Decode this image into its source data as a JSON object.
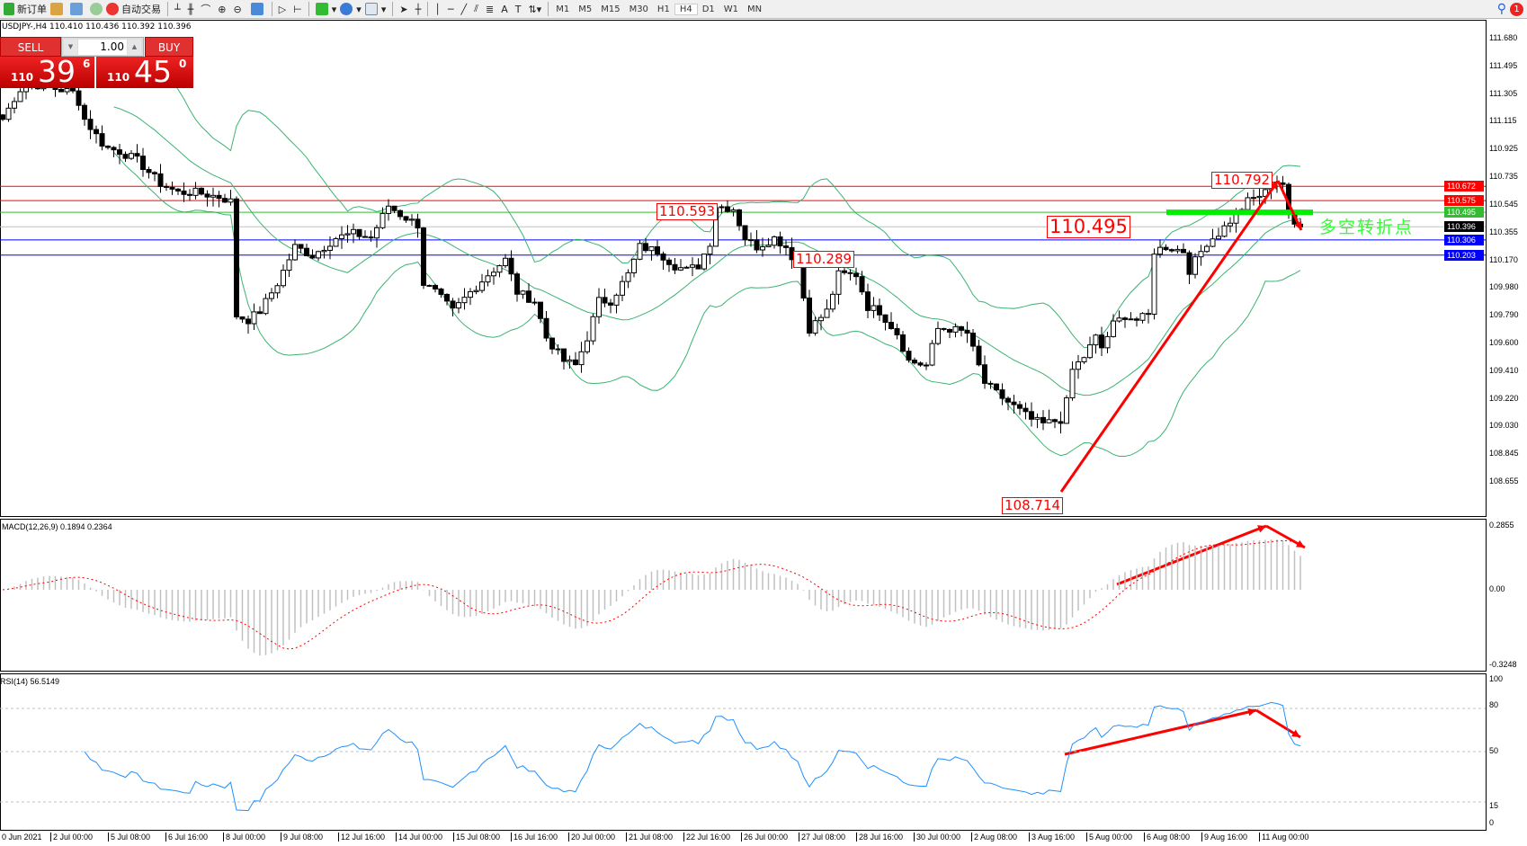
{
  "toolbar": {
    "new_order": "新订单",
    "auto_trading": "自动交易",
    "timeframes": [
      "M1",
      "M5",
      "M15",
      "M30",
      "H1",
      "H4",
      "D1",
      "W1",
      "MN"
    ],
    "active_timeframe": "H4",
    "notification_count": "1"
  },
  "symbol_info": "USDJPY-,H4  110.410 110.436 110.392 110.396",
  "one_click": {
    "sell_label": "SELL",
    "buy_label": "BUY",
    "lot": "1.00",
    "sell_small": "110",
    "sell_big": "39",
    "sell_pip": "6",
    "buy_small": "110",
    "buy_big": "45",
    "buy_pip": "0",
    "sell_color": "#e02020",
    "buy_color": "#e02020"
  },
  "price_axis": [
    "111.680",
    "111.495",
    "111.305",
    "111.115",
    "110.925",
    "110.735",
    "110.545",
    "110.355",
    "110.170",
    "109.980",
    "109.790",
    "109.600",
    "109.410",
    "109.220",
    "109.030",
    "108.845",
    "108.655"
  ],
  "price_tags": [
    {
      "text": "110.672",
      "color": "#ff0000"
    },
    {
      "text": "110.575",
      "color": "#ff0000"
    },
    {
      "text": "110.495",
      "color": "#33bb33"
    },
    {
      "text": "110.396",
      "color": "#000000"
    },
    {
      "text": "110.306",
      "color": "#0000ff"
    },
    {
      "text": "110.203",
      "color": "#0000ff"
    }
  ],
  "annotations": {
    "a1": "110.593",
    "a2": "110.289",
    "a3": "110.792",
    "a4": "110.495",
    "a5": "108.714",
    "pivot_text": "多空转折点"
  },
  "macd": {
    "label": "MACD(12,26,9) 0.1894 0.2364",
    "axis": [
      "0.2855",
      "0.00",
      "-0.3248"
    ]
  },
  "rsi": {
    "label": "RSI(14) 56.5149",
    "axis": [
      "100",
      "80",
      "50",
      "15",
      "0"
    ]
  },
  "time_axis": [
    "0 Jun 2021",
    "2 Jul 00:00",
    "5 Jul 08:00",
    "6 Jul 16:00",
    "8 Jul 00:00",
    "9 Jul 08:00",
    "12 Jul 16:00",
    "14 Jul 00:00",
    "15 Jul 08:00",
    "16 Jul 16:00",
    "20 Jul 00:00",
    "21 Jul 08:00",
    "22 Jul 16:00",
    "26 Jul 00:00",
    "27 Jul 08:00",
    "28 Jul 16:00",
    "30 Jul 00:00",
    "2 Aug 08:00",
    "3 Aug 16:00",
    "5 Aug 00:00",
    "6 Aug 08:00",
    "9 Aug 16:00",
    "11 Aug 00:00"
  ],
  "chart_data": {
    "type": "candlestick",
    "symbol": "USDJPY",
    "timeframe": "H4",
    "ylim": [
      108.655,
      111.68
    ],
    "close_anchors": [
      [
        0,
        111.13
      ],
      [
        2.5,
        111.31
      ],
      [
        4,
        111.38
      ],
      [
        12.5,
        111.31
      ],
      [
        14,
        111.13
      ],
      [
        17.5,
        110.94
      ],
      [
        20,
        110.91
      ],
      [
        23,
        110.85
      ],
      [
        27,
        110.69
      ],
      [
        30,
        110.63
      ],
      [
        33,
        110.63
      ],
      [
        37,
        110.6
      ],
      [
        39,
        110.57
      ],
      [
        40,
        109.79
      ],
      [
        42,
        109.76
      ],
      [
        44,
        109.82
      ],
      [
        47,
        110.01
      ],
      [
        50,
        110.26
      ],
      [
        53,
        110.2
      ],
      [
        57,
        110.32
      ],
      [
        60,
        110.35
      ],
      [
        63,
        110.32
      ],
      [
        66,
        110.54
      ],
      [
        68,
        110.48
      ],
      [
        71,
        110.41
      ],
      [
        72,
        110.01
      ],
      [
        74,
        109.95
      ],
      [
        77,
        109.82
      ],
      [
        80,
        109.95
      ],
      [
        83,
        110.07
      ],
      [
        86,
        110.17
      ],
      [
        88,
        109.95
      ],
      [
        91,
        109.89
      ],
      [
        93,
        109.64
      ],
      [
        96,
        109.48
      ],
      [
        98,
        109.45
      ],
      [
        100,
        109.64
      ],
      [
        102,
        109.89
      ],
      [
        104,
        109.89
      ],
      [
        107,
        110.07
      ],
      [
        109,
        110.26
      ],
      [
        112,
        110.23
      ],
      [
        115,
        110.13
      ],
      [
        117,
        110.1
      ],
      [
        119,
        110.13
      ],
      [
        121,
        110.29
      ],
      [
        122,
        110.54
      ],
      [
        125,
        110.52
      ],
      [
        127,
        110.32
      ],
      [
        129,
        110.26
      ],
      [
        132,
        110.32
      ],
      [
        134,
        110.26
      ],
      [
        136,
        110.13
      ],
      [
        138,
        109.7
      ],
      [
        141,
        109.82
      ],
      [
        143,
        110.07
      ],
      [
        146,
        110.07
      ],
      [
        148,
        109.85
      ],
      [
        150,
        109.82
      ],
      [
        153,
        109.67
      ],
      [
        155,
        109.48
      ],
      [
        158,
        109.45
      ],
      [
        160,
        109.7
      ],
      [
        162,
        109.7
      ],
      [
        165,
        109.67
      ],
      [
        168,
        109.33
      ],
      [
        170,
        109.26
      ],
      [
        173,
        109.17
      ],
      [
        176,
        109.08
      ],
      [
        178,
        109.05
      ],
      [
        181,
        109.08
      ],
      [
        182,
        109.2
      ],
      [
        183,
        109.42
      ],
      [
        185,
        109.51
      ],
      [
        187,
        109.64
      ],
      [
        188,
        109.57
      ],
      [
        190,
        109.73
      ],
      [
        192,
        109.79
      ],
      [
        194,
        109.76
      ],
      [
        196,
        109.79
      ],
      [
        197,
        110.23
      ],
      [
        199,
        110.26
      ],
      [
        202,
        110.23
      ],
      [
        203,
        110.1
      ],
      [
        206,
        110.29
      ],
      [
        208,
        110.35
      ],
      [
        211,
        110.48
      ],
      [
        213,
        110.57
      ],
      [
        216,
        110.63
      ],
      [
        217,
        110.72
      ],
      [
        219,
        110.69
      ],
      [
        220,
        110.48
      ],
      [
        221,
        110.41
      ],
      [
        222,
        110.396
      ]
    ],
    "hlines": [
      {
        "price": 110.672,
        "color": "#ff0000"
      },
      {
        "price": 110.575,
        "color": "#ff0000"
      },
      {
        "price": 110.495,
        "color": "#33bb33"
      },
      {
        "price": 110.396,
        "color": "#c0c0c0"
      },
      {
        "price": 110.306,
        "color": "#0000ff"
      },
      {
        "price": 110.203,
        "color": "#0000ff"
      }
    ],
    "bollinger": {
      "period": 20,
      "deviation": 2,
      "color": "#3cb371"
    },
    "macd_params": [
      12,
      26,
      9
    ],
    "rsi_period": 14,
    "rsi_levels": [
      80,
      50,
      15
    ]
  }
}
